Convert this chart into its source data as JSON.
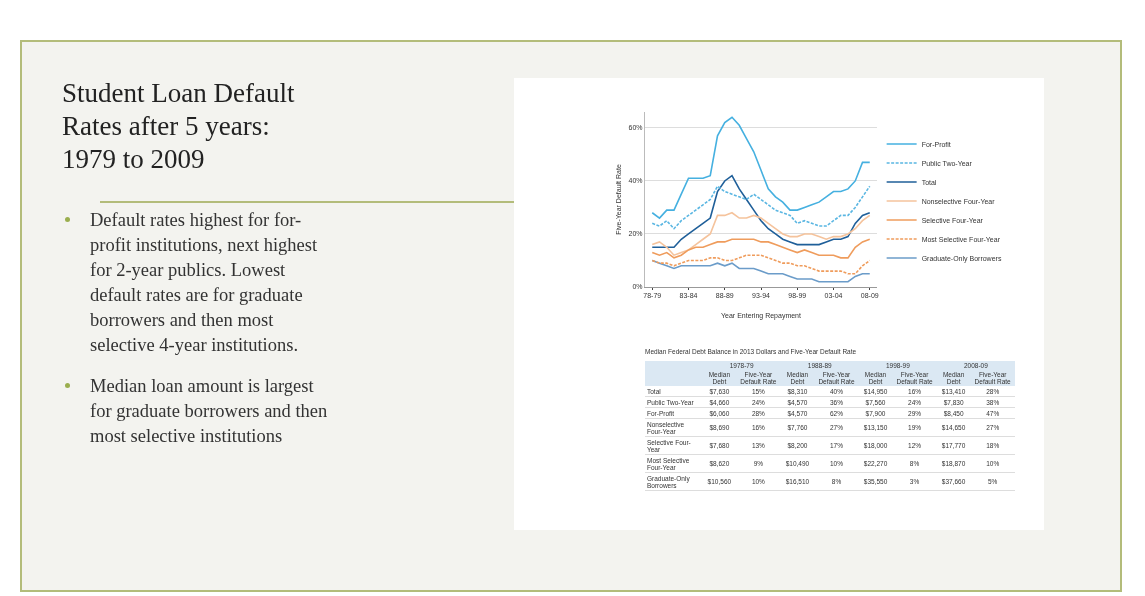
{
  "chart_data": [
    {
      "type": "other",
      "title": "Student Loan Default Rates after 5 years: 1979 to 2009",
      "annotations": [
        "Default rates highest for for-profit institutions, next highest for 2-year publics. Lowest default rates are for graduate borrowers and then most selective 4-year institutions.",
        "Median loan amount is largest for graduate borrowers and then most selective institutions"
      ]
    },
    {
      "type": "line",
      "xlabel": "Year Entering Repayment",
      "ylabel": "Five-Year Default Rate",
      "categories": [
        "78-79",
        null,
        null,
        null,
        null,
        "83-84",
        null,
        null,
        null,
        null,
        "88-89",
        null,
        null,
        null,
        null,
        "93-94",
        null,
        null,
        null,
        null,
        "98-99",
        null,
        null,
        null,
        null,
        "03-04",
        null,
        null,
        null,
        null,
        "08-09"
      ],
      "series": [
        {
          "name": "For-Profit",
          "color": "#45b0e0",
          "line_style": "solid",
          "values": [
            28,
            26,
            29,
            29,
            35,
            41,
            41,
            41,
            42,
            57,
            62,
            64,
            61,
            56,
            51,
            44,
            37,
            34,
            32,
            29,
            29,
            30,
            31,
            32,
            34,
            36,
            36,
            37,
            40,
            47,
            47
          ]
        },
        {
          "name": "Public Two-Year",
          "color": "#5ab6e2",
          "line_style": "dashed",
          "values": [
            24,
            23,
            25,
            22,
            25,
            27,
            29,
            31,
            33,
            38,
            36,
            35,
            34,
            33,
            35,
            33,
            31,
            29,
            28,
            27,
            24,
            25,
            24,
            23,
            23,
            25,
            27,
            27,
            30,
            34,
            38
          ]
        },
        {
          "name": "Total",
          "color": "#1f5f99",
          "line_style": "solid",
          "values": [
            15,
            15,
            15,
            15,
            18,
            20,
            22,
            24,
            26,
            36,
            40,
            42,
            37,
            33,
            29,
            25,
            22,
            20,
            18,
            17,
            16,
            16,
            16,
            16,
            17,
            18,
            18,
            19,
            24,
            27,
            28
          ]
        },
        {
          "name": "Nonselective Four-Year",
          "color": "#f5c39c",
          "line_style": "solid",
          "values": [
            16,
            17,
            15,
            12,
            13,
            14,
            16,
            18,
            20,
            27,
            27,
            28,
            26,
            26,
            27,
            26,
            24,
            22,
            20,
            19,
            19,
            20,
            20,
            19,
            18,
            19,
            19,
            20,
            22,
            25,
            27
          ]
        },
        {
          "name": "Selective Four-Year",
          "color": "#ef9c5c",
          "line_style": "solid",
          "values": [
            13,
            12,
            13,
            11,
            12,
            14,
            15,
            15,
            16,
            17,
            17,
            18,
            18,
            18,
            18,
            17,
            17,
            16,
            15,
            14,
            13,
            14,
            13,
            12,
            12,
            12,
            11,
            11,
            15,
            17,
            18
          ]
        },
        {
          "name": "Most Selective Four-Year",
          "color": "#ef9c5c",
          "line_style": "dashed",
          "values": [
            10,
            9,
            9,
            8,
            9,
            10,
            10,
            10,
            11,
            11,
            10,
            10,
            11,
            12,
            12,
            12,
            11,
            10,
            9,
            9,
            8,
            8,
            7,
            6,
            6,
            6,
            6,
            5,
            5,
            8,
            10
          ]
        },
        {
          "name": "Graduate-Only Borrowers",
          "color": "#6b9cc9",
          "line_style": "solid",
          "values": [
            10,
            9,
            8,
            7,
            8,
            8,
            8,
            8,
            8,
            9,
            8,
            9,
            7,
            7,
            7,
            6,
            5,
            5,
            5,
            4,
            3,
            3,
            3,
            2,
            2,
            2,
            2,
            2,
            4,
            5,
            5
          ]
        }
      ],
      "ylim": [
        0,
        66
      ],
      "yticks": [
        {
          "value": 0,
          "label": "0%"
        },
        {
          "value": 20,
          "label": "20%"
        },
        {
          "value": 40,
          "label": "40%"
        },
        {
          "value": 60,
          "label": "60%"
        }
      ],
      "grid": "y",
      "legend": "right",
      "marker": "none"
    },
    {
      "type": "other",
      "title": "Median Federal Debt Balance in 2013 Dollars and Five-Year Default Rate",
      "annotations": [
        "1978-79",
        "1988-89",
        "1998-99",
        "2008-09"
      ],
      "categories": [
        "Median Debt",
        "Five-Year Default Rate",
        "Median Debt",
        "Five-Year Default Rate",
        "Median Debt",
        "Five-Year Default Rate",
        "Median Debt",
        "Five-Year Default Rate"
      ],
      "y_categories": [
        "Total",
        "Public Two-Year",
        "For-Profit",
        "Nonselective Four-Year",
        "Selective Four-Year",
        "Most Selective Four-Year",
        "Graduate-Only Borrowers"
      ],
      "cell_labels": [
        [
          "$7,630",
          "15%",
          "$8,310",
          "40%",
          "$14,950",
          "16%",
          "$13,410",
          "28%"
        ],
        [
          "$4,660",
          "24%",
          "$4,570",
          "36%",
          "$7,560",
          "24%",
          "$7,830",
          "38%"
        ],
        [
          "$6,060",
          "28%",
          "$4,570",
          "62%",
          "$7,900",
          "29%",
          "$8,450",
          "47%"
        ],
        [
          "$8,690",
          "16%",
          "$7,760",
          "27%",
          "$13,150",
          "19%",
          "$14,650",
          "27%"
        ],
        [
          "$7,680",
          "13%",
          "$8,200",
          "17%",
          "$18,000",
          "12%",
          "$17,770",
          "18%"
        ],
        [
          "$8,620",
          "9%",
          "$10,490",
          "10%",
          "$22,270",
          "8%",
          "$18,870",
          "10%"
        ],
        [
          "$10,560",
          "10%",
          "$16,510",
          "8%",
          "$35,550",
          "3%",
          "$37,660",
          "5%"
        ]
      ]
    }
  ]
}
